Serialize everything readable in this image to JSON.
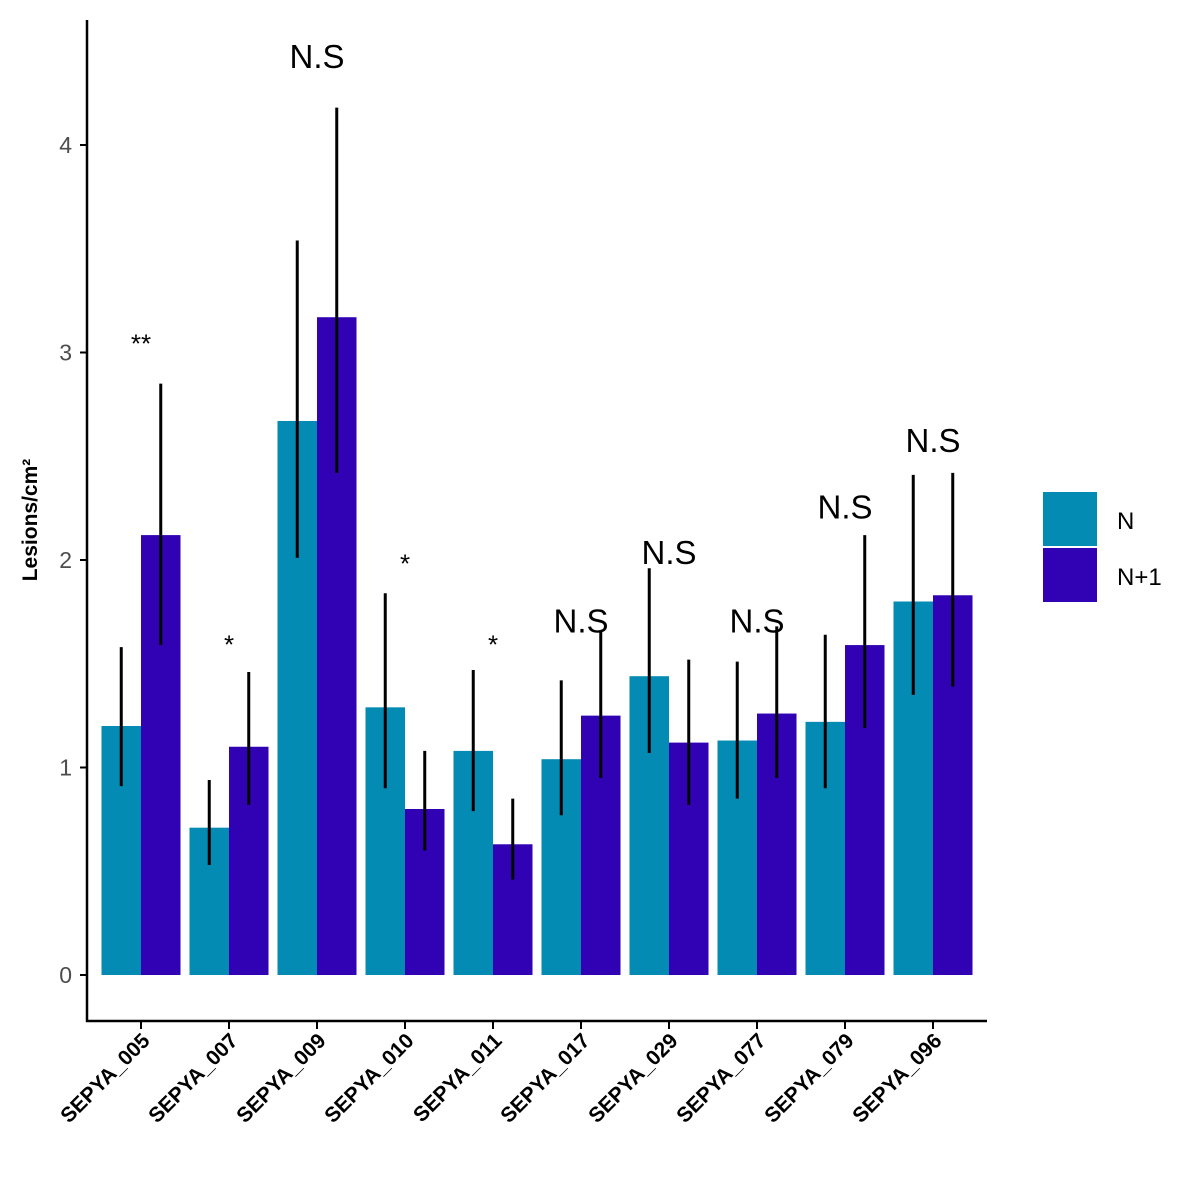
{
  "chart_data": {
    "type": "bar",
    "title": "",
    "xlabel": "",
    "ylabel": "Lesions/cm²",
    "ylim": [
      -0.22,
      4.6
    ],
    "yticks": [
      0,
      1,
      2,
      3,
      4
    ],
    "ytick_labels": [
      "0",
      "1",
      "2",
      "3",
      "4"
    ],
    "categories": [
      "SEPYA_005",
      "SEPYA_007",
      "SEPYA_009",
      "SEPYA_010",
      "SEPYA_011",
      "SEPYA_017",
      "SEPYA_029",
      "SEPYA_077",
      "SEPYA_079",
      "SEPYA_096"
    ],
    "series": [
      {
        "name": "N",
        "color": "#048bb3",
        "values": [
          1.2,
          0.71,
          2.67,
          1.29,
          1.08,
          1.04,
          1.44,
          1.13,
          1.22,
          1.8
        ],
        "error_low": [
          0.91,
          0.53,
          2.01,
          0.9,
          0.79,
          0.77,
          1.07,
          0.85,
          0.9,
          1.35
        ],
        "error_high": [
          1.58,
          0.94,
          3.54,
          1.84,
          1.47,
          1.42,
          1.96,
          1.51,
          1.64,
          2.41
        ]
      },
      {
        "name": "N+1",
        "color": "#3002b4",
        "values": [
          2.12,
          1.1,
          3.17,
          0.8,
          0.63,
          1.25,
          1.12,
          1.26,
          1.59,
          1.83
        ],
        "error_low": [
          1.59,
          0.82,
          2.42,
          0.6,
          0.46,
          0.95,
          0.82,
          0.95,
          1.19,
          1.39
        ],
        "error_high": [
          2.85,
          1.46,
          4.18,
          1.08,
          0.85,
          1.66,
          1.52,
          1.68,
          2.12,
          2.42
        ]
      }
    ],
    "annotations": [
      "**",
      "*",
      "N.S",
      "*",
      "*",
      "N.S",
      "N.S",
      "N.S",
      "N.S",
      "N.S"
    ],
    "annotation_y": [
      3.0,
      1.55,
      4.37,
      1.94,
      1.55,
      1.65,
      1.98,
      1.65,
      2.2,
      2.52
    ],
    "legend": {
      "placement": "right",
      "entries": [
        "N",
        "N+1"
      ]
    },
    "grid": false
  }
}
